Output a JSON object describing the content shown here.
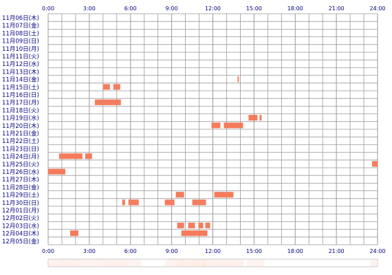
{
  "chart_data": {
    "type": "heatmap",
    "x_unit": "hour",
    "xlim": [
      0,
      24
    ],
    "xticks": [
      "0:00",
      "3:00",
      "6:00",
      "9:00",
      "12:00",
      "15:00",
      "18:00",
      "21:00",
      "24:00"
    ],
    "grid": true,
    "colors": {
      "bar": "#f47c5c",
      "grid": "#999999",
      "label": "#000080",
      "summary_base": "#fde6dc"
    },
    "rows": [
      {
        "label": "11月06日(木)",
        "intervals": []
      },
      {
        "label": "11月07日(金)",
        "intervals": []
      },
      {
        "label": "11月08日(土)",
        "intervals": []
      },
      {
        "label": "11月09日(日)",
        "intervals": []
      },
      {
        "label": "11月10日(月)",
        "intervals": []
      },
      {
        "label": "11月11日(火)",
        "intervals": []
      },
      {
        "label": "11月12日(水)",
        "intervals": []
      },
      {
        "label": "11月13日(木)",
        "intervals": []
      },
      {
        "label": "11月14日(金)",
        "intervals": [
          [
            13.8,
            13.9
          ]
        ]
      },
      {
        "label": "11月15日(土)",
        "intervals": [
          [
            4.0,
            4.5
          ],
          [
            4.75,
            5.25
          ]
        ]
      },
      {
        "label": "11月16日(日)",
        "intervals": []
      },
      {
        "label": "11月17日(月)",
        "intervals": [
          [
            3.4,
            5.3
          ]
        ]
      },
      {
        "label": "11月18日(火)",
        "intervals": []
      },
      {
        "label": "11月19日(水)",
        "intervals": [
          [
            14.6,
            15.25
          ],
          [
            15.4,
            15.55
          ]
        ]
      },
      {
        "label": "11月20日(木)",
        "intervals": [
          [
            11.9,
            12.55
          ],
          [
            12.8,
            14.2
          ]
        ]
      },
      {
        "label": "11月21日(金)",
        "intervals": []
      },
      {
        "label": "11月22日(土)",
        "intervals": []
      },
      {
        "label": "11月23日(日)",
        "intervals": []
      },
      {
        "label": "11月24日(月)",
        "intervals": [
          [
            0.8,
            2.5
          ],
          [
            2.7,
            3.2
          ]
        ]
      },
      {
        "label": "11月25日(火)",
        "intervals": [
          [
            23.6,
            24.0
          ]
        ]
      },
      {
        "label": "11月26日(水)",
        "intervals": [
          [
            0.0,
            1.25
          ]
        ]
      },
      {
        "label": "11月27日(木)",
        "intervals": []
      },
      {
        "label": "11月28日(金)",
        "intervals": []
      },
      {
        "label": "11月29日(土)",
        "intervals": [
          [
            9.3,
            9.9
          ],
          [
            12.1,
            13.5
          ]
        ]
      },
      {
        "label": "11月30日(日)",
        "intervals": [
          [
            5.4,
            5.6
          ],
          [
            5.85,
            6.6
          ],
          [
            8.5,
            9.2
          ],
          [
            10.5,
            11.5
          ]
        ]
      },
      {
        "label": "12月01日(月)",
        "intervals": []
      },
      {
        "label": "12月02日(火)",
        "intervals": []
      },
      {
        "label": "12月03日(水)",
        "intervals": [
          [
            9.4,
            9.9
          ],
          [
            10.2,
            10.7
          ],
          [
            10.95,
            11.3
          ],
          [
            11.45,
            11.8
          ]
        ]
      },
      {
        "label": "12月04日(木)",
        "intervals": [
          [
            1.6,
            2.2
          ],
          [
            9.7,
            11.6
          ]
        ]
      },
      {
        "label": "12月05日(金)",
        "intervals": []
      }
    ]
  }
}
